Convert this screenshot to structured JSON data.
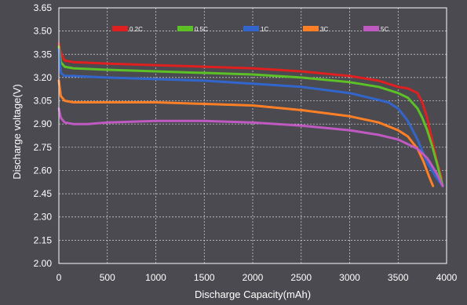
{
  "chart_data": {
    "type": "line",
    "title": "",
    "xlabel": "Discharge Capacity(mAh)",
    "ylabel": "Discharge voltage(V)",
    "xlim": [
      0,
      4000
    ],
    "ylim": [
      2.0,
      3.65
    ],
    "x_ticks": [
      "0",
      "500",
      "1000",
      "1500",
      "2000",
      "2500",
      "3000",
      "3500",
      "4000"
    ],
    "y_ticks": [
      "2.00",
      "2.15",
      "2.30",
      "2.45",
      "2.60",
      "2.75",
      "2.90",
      "3.05",
      "3.20",
      "3.35",
      "3.50",
      "3.65"
    ],
    "grid": true,
    "legend_position": "top",
    "series": [
      {
        "name": "0.2C",
        "color": "#e02020",
        "x": [
          0,
          20,
          60,
          150,
          500,
          1000,
          1500,
          2000,
          2500,
          3000,
          3300,
          3500,
          3600,
          3700,
          3750,
          3800,
          3850,
          3900,
          3950
        ],
        "y": [
          3.42,
          3.36,
          3.31,
          3.3,
          3.29,
          3.28,
          3.27,
          3.26,
          3.24,
          3.21,
          3.18,
          3.14,
          3.13,
          3.1,
          3.04,
          2.94,
          2.8,
          2.66,
          2.55
        ]
      },
      {
        "name": "0.5C",
        "color": "#5cc026",
        "x": [
          0,
          20,
          60,
          150,
          500,
          1000,
          1500,
          2000,
          2500,
          3000,
          3300,
          3500,
          3600,
          3700,
          3750,
          3800,
          3850,
          3900,
          3960
        ],
        "y": [
          3.4,
          3.3,
          3.27,
          3.26,
          3.25,
          3.24,
          3.23,
          3.22,
          3.2,
          3.17,
          3.14,
          3.1,
          3.07,
          3.0,
          2.94,
          2.86,
          2.76,
          2.65,
          2.5
        ]
      },
      {
        "name": "1C",
        "color": "#3366cc",
        "x": [
          0,
          20,
          60,
          150,
          500,
          1000,
          1500,
          2000,
          2500,
          3000,
          3200,
          3400,
          3500,
          3600,
          3700,
          3800,
          3900,
          3960
        ],
        "y": [
          3.38,
          3.23,
          3.21,
          3.21,
          3.2,
          3.19,
          3.18,
          3.16,
          3.14,
          3.1,
          3.07,
          3.04,
          3.0,
          2.92,
          2.8,
          2.65,
          2.55,
          2.5
        ]
      },
      {
        "name": "3C",
        "color": "#ff7f27",
        "x": [
          0,
          20,
          60,
          150,
          300,
          500,
          1000,
          1500,
          2000,
          2500,
          3000,
          3300,
          3500,
          3600,
          3700,
          3760,
          3820,
          3860
        ],
        "y": [
          3.18,
          3.08,
          3.05,
          3.04,
          3.04,
          3.04,
          3.04,
          3.03,
          3.02,
          2.99,
          2.95,
          2.91,
          2.86,
          2.82,
          2.74,
          2.66,
          2.56,
          2.5
        ]
      },
      {
        "name": "5C",
        "color": "#c05ac2",
        "x": [
          0,
          20,
          60,
          150,
          300,
          500,
          1000,
          1500,
          2000,
          2500,
          3000,
          3300,
          3500,
          3600,
          3700,
          3800,
          3900,
          3960
        ],
        "y": [
          3.0,
          2.94,
          2.91,
          2.9,
          2.9,
          2.91,
          2.92,
          2.92,
          2.91,
          2.89,
          2.86,
          2.83,
          2.8,
          2.77,
          2.74,
          2.68,
          2.58,
          2.5
        ]
      }
    ]
  }
}
